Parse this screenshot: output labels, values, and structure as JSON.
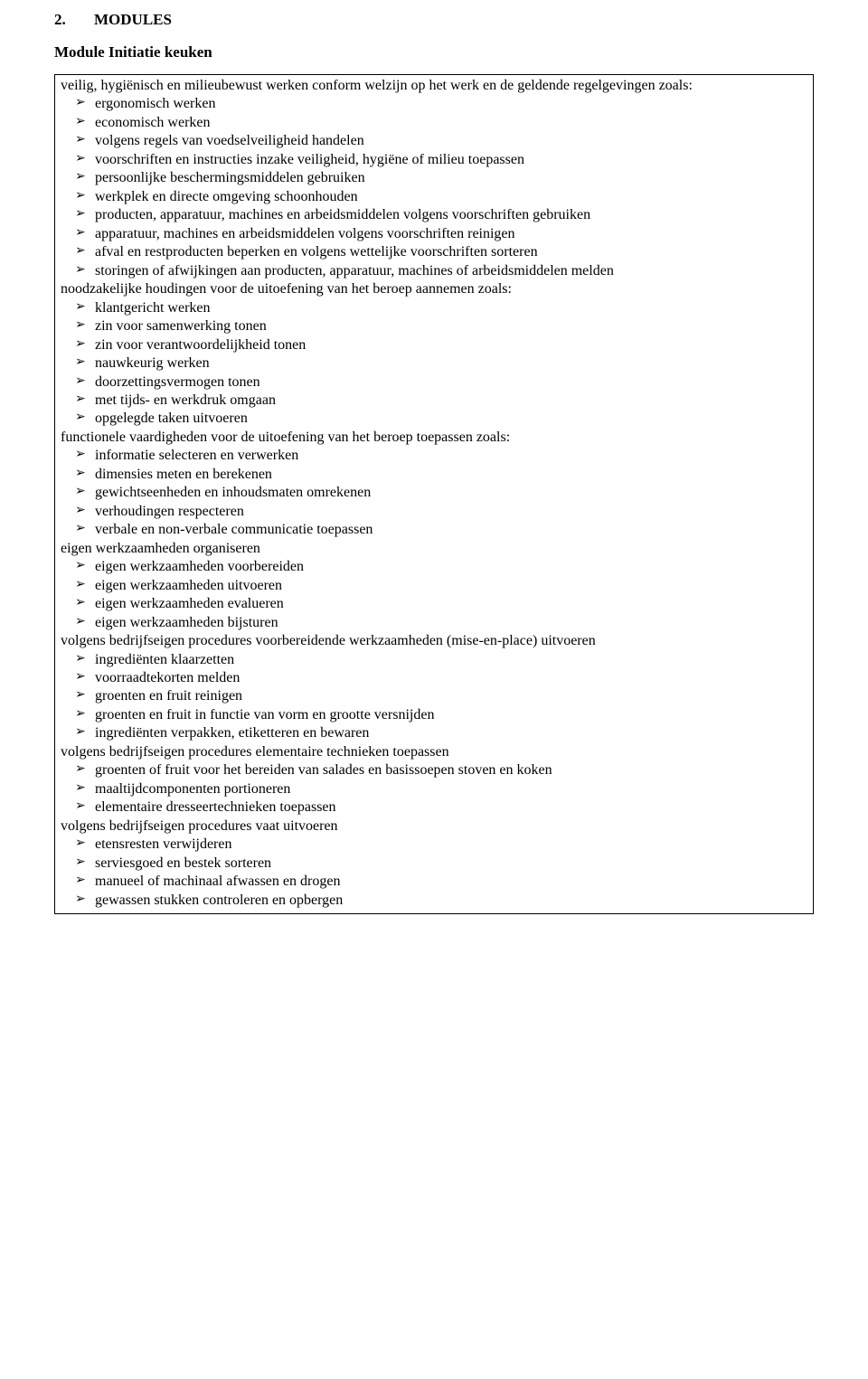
{
  "section_number": "2.",
  "section_title": "MODULES",
  "module_title": "Module Initiatie keuken",
  "groups": [
    {
      "intro": "veilig, hygiënisch en milieubewust werken conform welzijn op het werk en de geldende regelgevingen zoals:",
      "items": [
        "ergonomisch werken",
        "economisch werken",
        "volgens regels van voedselveiligheid handelen",
        "voorschriften en instructies inzake veiligheid, hygiëne of milieu toepassen",
        "persoonlijke beschermingsmiddelen gebruiken",
        "werkplek en directe omgeving schoonhouden",
        "producten, apparatuur, machines en arbeidsmiddelen volgens voorschriften gebruiken",
        "apparatuur, machines en arbeidsmiddelen volgens voorschriften reinigen",
        "afval en restproducten beperken en volgens wettelijke voorschriften sorteren",
        "storingen of afwijkingen aan producten, apparatuur, machines of arbeidsmiddelen melden"
      ]
    },
    {
      "intro": "noodzakelijke houdingen voor de uitoefening van het beroep aannemen zoals:",
      "items": [
        "klantgericht werken",
        "zin voor samenwerking tonen",
        "zin voor verantwoordelijkheid tonen",
        "nauwkeurig werken",
        "doorzettingsvermogen tonen",
        "met tijds- en werkdruk omgaan",
        "opgelegde taken uitvoeren"
      ]
    },
    {
      "intro": "functionele vaardigheden voor de uitoefening van het beroep toepassen zoals:",
      "items": [
        "informatie selecteren en verwerken",
        "dimensies meten en berekenen",
        "gewichtseenheden en inhoudsmaten omrekenen",
        "verhoudingen respecteren",
        "verbale en non-verbale communicatie toepassen"
      ]
    },
    {
      "intro": "eigen werkzaamheden organiseren",
      "items": [
        "eigen werkzaamheden voorbereiden",
        "eigen werkzaamheden uitvoeren",
        "eigen werkzaamheden evalueren",
        "eigen werkzaamheden bijsturen"
      ]
    },
    {
      "intro": "volgens bedrijfseigen procedures voorbereidende werkzaamheden (mise-en-place) uitvoeren",
      "items": [
        "ingrediënten klaarzetten",
        "voorraadtekorten melden",
        "groenten en fruit reinigen",
        "groenten en fruit in functie van vorm en grootte versnijden",
        "ingrediënten verpakken, etiketteren en bewaren"
      ]
    },
    {
      "intro": "volgens bedrijfseigen procedures elementaire technieken toepassen",
      "items": [
        "groenten of fruit voor het bereiden van salades en basissoepen stoven en koken",
        "maaltijdcomponenten portioneren",
        "elementaire dresseertechnieken toepassen"
      ]
    },
    {
      "intro": "volgens bedrijfseigen procedures vaat uitvoeren",
      "items": [
        "etensresten verwijderen",
        "serviesgoed en bestek sorteren",
        "manueel of machinaal afwassen en drogen",
        "gewassen stukken controleren en opbergen"
      ]
    }
  ]
}
